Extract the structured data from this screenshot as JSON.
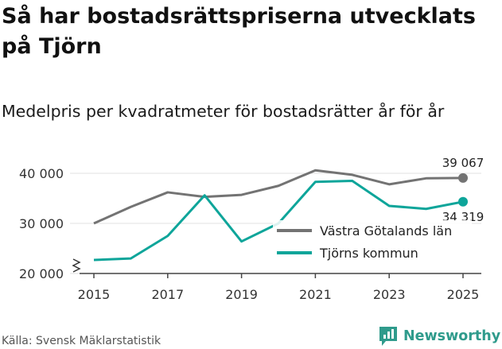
{
  "title": "Så har bostadsrättspriserna utvecklats på Tjörn",
  "subtitle": "Medelpris per kvadratmeter för bostadsrätter år för år",
  "source": "Källa: Svensk Mäklarstatistik",
  "brand": {
    "name": "Newsworthy",
    "icon": "newsworthy-logo-icon"
  },
  "colors": {
    "region": "#737373",
    "municipality": "#0ea59a",
    "grid": "#e0e0e0",
    "brand": "#2f9b8c"
  },
  "chart_data": {
    "type": "line",
    "x": [
      2015,
      2016,
      2017,
      2018,
      2019,
      2020,
      2021,
      2022,
      2023,
      2024,
      2025
    ],
    "x_ticks": [
      2015,
      2017,
      2019,
      2021,
      2023,
      2025
    ],
    "y_ticks": [
      20000,
      30000,
      40000
    ],
    "y_tick_labels": [
      "20 000",
      "30 000",
      "40 000"
    ],
    "ylim": [
      20000,
      43000
    ],
    "y_axis_break": true,
    "series": [
      {
        "name": "Västra Götalands län",
        "values": [
          30000,
          33300,
          36200,
          35300,
          35700,
          37500,
          40600,
          39700,
          37800,
          39000,
          39067
        ],
        "end_label": "39 067"
      },
      {
        "name": "Tjörns kommun",
        "values": [
          22700,
          23000,
          27500,
          35600,
          26400,
          30000,
          38300,
          38500,
          33500,
          32900,
          34319
        ],
        "end_label": "34 319"
      }
    ],
    "xlabel": "",
    "ylabel": "",
    "legend_position": "center-right"
  }
}
